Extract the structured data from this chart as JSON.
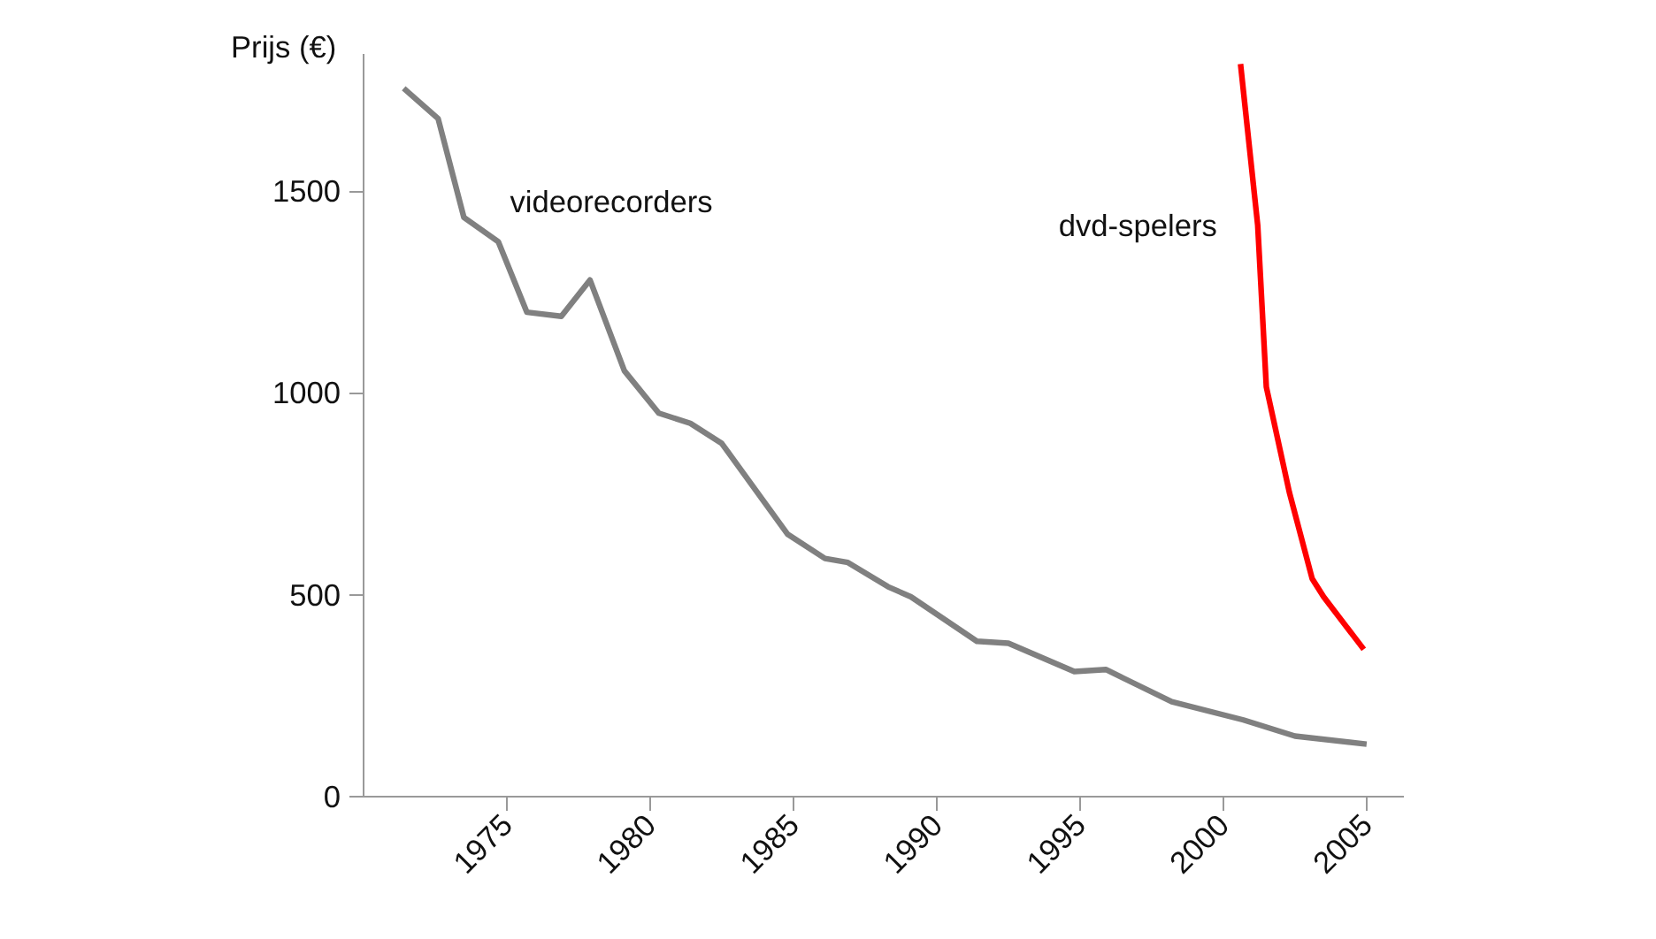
{
  "chart_data": {
    "type": "line",
    "ylabel": "Prijs (€)",
    "xlim": [
      1970,
      2006.3
    ],
    "ylim": [
      0,
      1840
    ],
    "xticks": [
      1975,
      1980,
      1985,
      1990,
      1995,
      2000,
      2005
    ],
    "yticks": [
      0,
      500,
      1000,
      1500
    ],
    "grid": false,
    "legend": false,
    "marker": "none",
    "line_style": "solid",
    "series": [
      {
        "name": "videorecorders",
        "color": "#808080",
        "x": [
          1971.4,
          1972.6,
          1973.5,
          1974.7,
          1975.7,
          1976.9,
          1977.9,
          1979.1,
          1980.3,
          1981.4,
          1982.5,
          1984.8,
          1986.1,
          1986.9,
          1988.3,
          1989.1,
          1991.4,
          1992.5,
          1994.8,
          1995.9,
          1998.2,
          2000.7,
          2002.5,
          2005
        ],
        "values": [
          1755,
          1680,
          1435,
          1375,
          1200,
          1190,
          1280,
          1055,
          950,
          925,
          875,
          650,
          590,
          580,
          520,
          495,
          385,
          380,
          310,
          315,
          235,
          190,
          150,
          130
        ]
      },
      {
        "name": "dvd-spelers",
        "color": "#ff0000",
        "x": [
          2000.6,
          2001.2,
          2001.5,
          2002.3,
          2003.1,
          2003.5,
          2004.9
        ],
        "values": [
          1815,
          1415,
          1015,
          755,
          540,
          495,
          365
        ]
      }
    ]
  }
}
